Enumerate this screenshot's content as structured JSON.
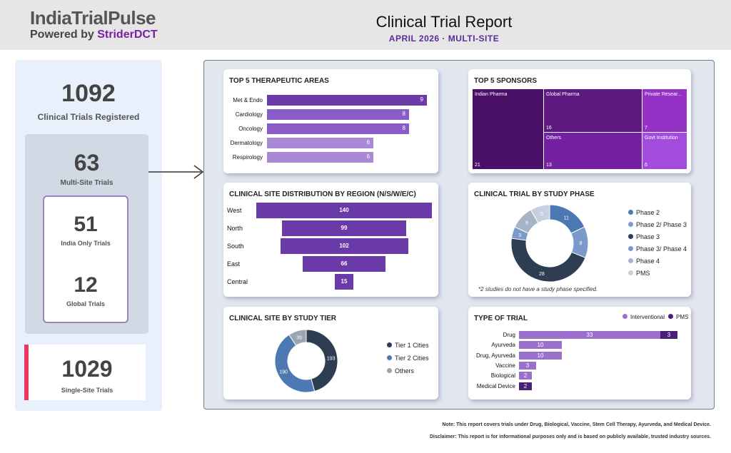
{
  "header": {
    "logo_title": "IndiaTrialPulse",
    "logo_powered": "Powered by ",
    "logo_brand": "StriderDCT",
    "title": "Clinical Trial Report",
    "subtitle": "APRIL 2026  ·  MULTI-SITE"
  },
  "kpis": {
    "total": {
      "value": "1092",
      "label": "Clinical Trials Registered"
    },
    "multi_site": {
      "value": "63",
      "label": "Multi-Site Trials"
    },
    "india_only": {
      "value": "51",
      "label": "India Only Trials"
    },
    "global": {
      "value": "12",
      "label": "Global Trials"
    },
    "single_site": {
      "value": "1029",
      "label": "Single-Site Trials"
    }
  },
  "colors": {
    "accent": "#6a3aa8",
    "single_site_bar": "#e53961"
  },
  "chart_data": [
    {
      "id": "therapeutic",
      "type": "bar",
      "title": "TOP 5 THERAPEUTIC AREAS",
      "categories": [
        "Met & Endo",
        "Cardiology",
        "Oncology",
        "Dermatology",
        "Respirology"
      ],
      "values": [
        9,
        8,
        8,
        6,
        6
      ],
      "colors": [
        "#6a3aa8",
        "#8a5cc8",
        "#8a5cc8",
        "#a989d6",
        "#a989d6"
      ]
    },
    {
      "id": "sponsors",
      "type": "heatmap",
      "title": "TOP 5 SPONSORS",
      "items": [
        {
          "name": "Indian Pharma",
          "value": 21,
          "color": "#4a0f66"
        },
        {
          "name": "Global Pharma",
          "value": 16,
          "color": "#5e1880"
        },
        {
          "name": "Others",
          "value": 13,
          "color": "#7321a2"
        },
        {
          "name": "Private Resear...",
          "value": 7,
          "color": "#9432c6"
        },
        {
          "name": "Govt Institution",
          "value": 6,
          "color": "#a24cdd"
        }
      ]
    },
    {
      "id": "region",
      "type": "bar",
      "title": "CLINICAL SITE DISTRIBUTION BY REGION (N/S/W/E/C)",
      "categories": [
        "West",
        "North",
        "South",
        "East",
        "Central"
      ],
      "values": [
        140,
        99,
        102,
        66,
        15
      ],
      "color": "#6a3aa8"
    },
    {
      "id": "phase",
      "type": "pie",
      "title": "CLINICAL TRIAL BY STUDY PHASE",
      "labels": [
        "Phase 2",
        "Phase 2/ Phase 3",
        "Phase 3",
        "Phase 3/ Phase 4",
        "Phase 4",
        "PMS"
      ],
      "values": [
        11,
        8,
        28,
        3,
        6,
        5
      ],
      "colors": [
        "#4d79b3",
        "#7b9acb",
        "#2e3e52",
        "#7b9acb",
        "#a5b5c7",
        "#c7cfe0"
      ],
      "note": "*2 studies do not have a study phase specified."
    },
    {
      "id": "tier",
      "type": "pie",
      "title": "CLINICAL SITE BY STUDY TIER",
      "labels": [
        "Tier 1 Cities",
        "Tier 2 Cities",
        "Others"
      ],
      "values": [
        193,
        190,
        39
      ],
      "colors": [
        "#2e3e52",
        "#4d79b3",
        "#9aa4b2"
      ]
    },
    {
      "id": "trial_type",
      "type": "bar",
      "title": "TYPE OF TRIAL",
      "categories": [
        "Drug",
        "Ayurveda",
        "Drug, Ayurveda",
        "Vaccine",
        "Biological",
        "Medical Device"
      ],
      "series": [
        {
          "name": "Interventional",
          "values": [
            33,
            10,
            10,
            3,
            2,
            0
          ],
          "color": "#9b6fcc"
        },
        {
          "name": "PMS",
          "values": [
            3,
            0,
            0,
            0,
            0,
            2
          ],
          "color": "#4a1f78"
        }
      ]
    }
  ],
  "footer": {
    "note": "Note: This report covers trials under Drug, Biological, Vaccine, Stem Cell Therapy, Ayurveda, and Medical Device.",
    "disclaimer": "Disclaimer: This report is for informational purposes only and is based on publicly available, trusted industry sources."
  }
}
